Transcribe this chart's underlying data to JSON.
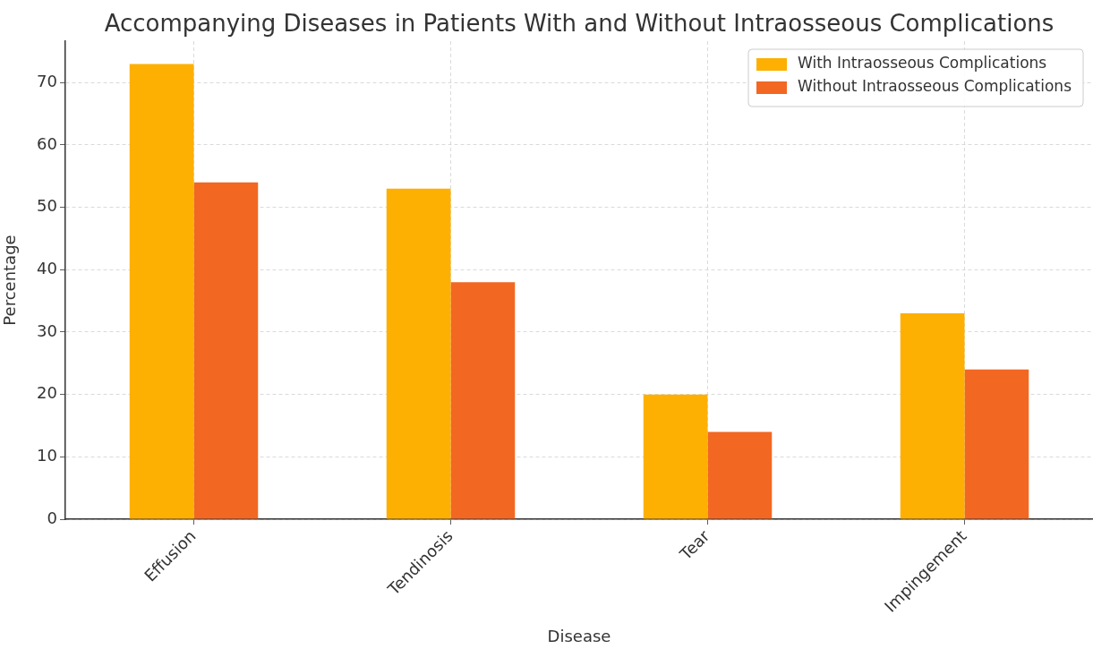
{
  "chart_data": {
    "type": "bar",
    "title": "Accompanying Diseases in Patients With and Without Intraosseous Complications",
    "xlabel": "Disease",
    "ylabel": "Percentage",
    "categories": [
      "Effusion",
      "Tendinosis",
      "Tear",
      "Impingement"
    ],
    "series": [
      {
        "name": "With Intraosseous Complications",
        "color": "#fdb002",
        "values": [
          73,
          53,
          20,
          33
        ]
      },
      {
        "name": "Without Intraosseous Complications",
        "color": "#f26722",
        "values": [
          54,
          38,
          14,
          24
        ]
      }
    ],
    "ylim": [
      0,
      76.65
    ],
    "yticks": [
      0,
      10,
      20,
      30,
      40,
      50,
      60,
      70
    ],
    "grid": true,
    "legend": "top right"
  }
}
